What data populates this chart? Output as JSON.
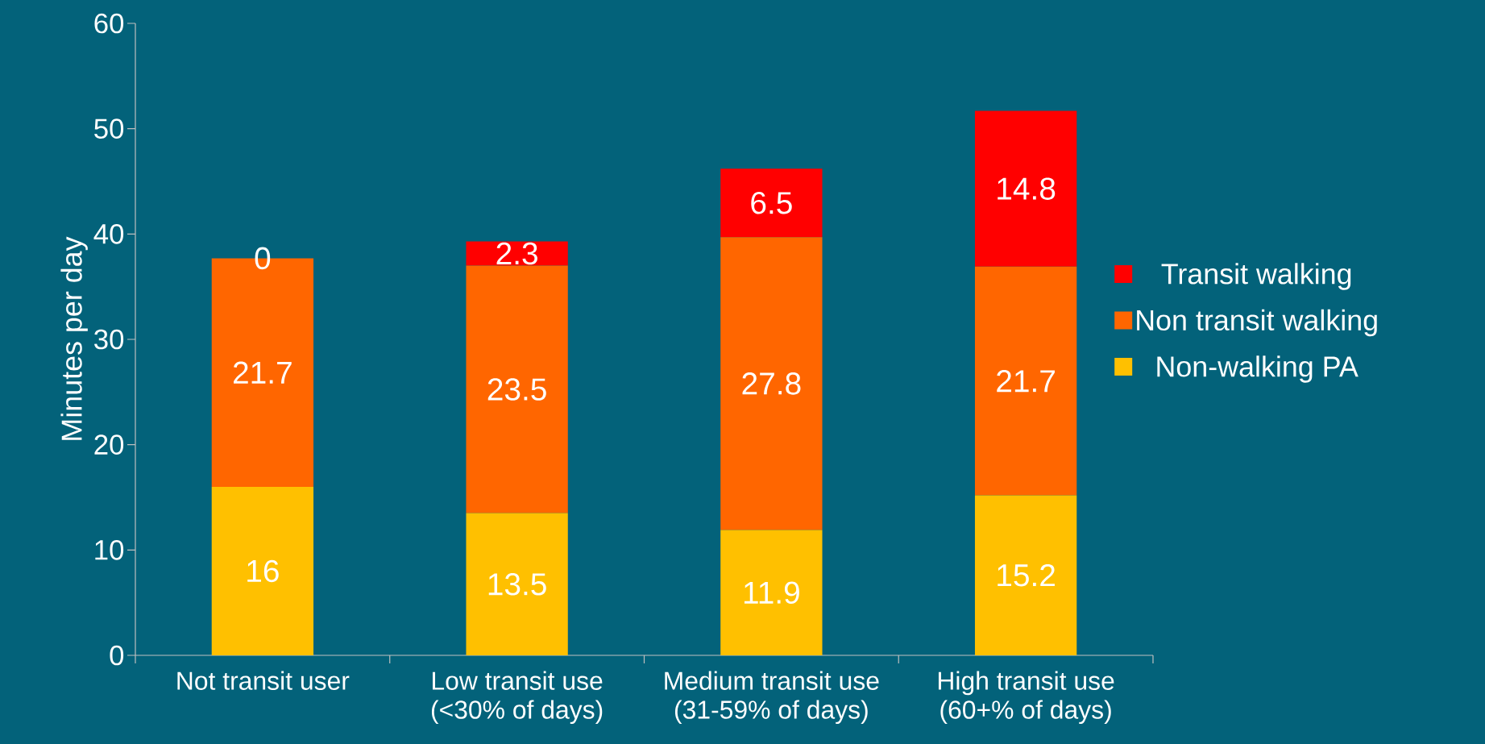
{
  "chart_data": {
    "type": "bar",
    "stacked": true,
    "ylabel": "Minutes per day",
    "categories": [
      "Not transit user",
      "Low transit use\n(<30% of days)",
      "Medium transit use\n(31-59% of days)",
      "High transit use\n(60+% of days)"
    ],
    "series": [
      {
        "name": "Non-walking PA",
        "color": "#ffc000",
        "values": [
          16,
          13.5,
          11.9,
          15.2
        ]
      },
      {
        "name": "Non transit walking",
        "color": "#ff6600",
        "values": [
          21.7,
          23.5,
          27.8,
          21.7
        ]
      },
      {
        "name": "Transit walking",
        "color": "#ff0000",
        "values": [
          0,
          2.3,
          6.5,
          14.8
        ]
      }
    ],
    "ylim": [
      0,
      60
    ],
    "yticks": [
      0,
      10,
      20,
      30,
      40,
      50,
      60
    ],
    "data_labels": true,
    "legend": "right"
  }
}
